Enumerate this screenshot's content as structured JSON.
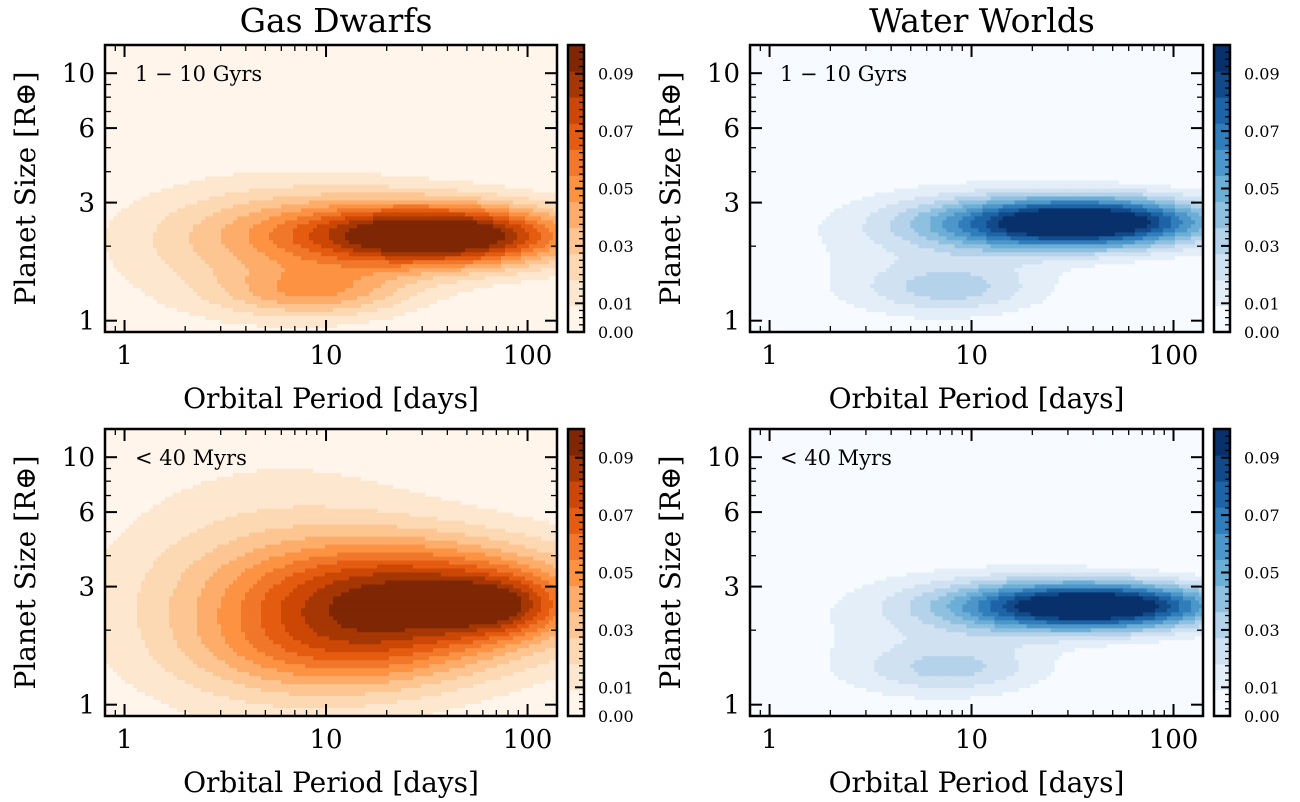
{
  "figure": {
    "column_titles": [
      "Gas Dwarfs",
      "Water Worlds"
    ]
  },
  "chart_data": [
    {
      "type": "heatmap",
      "model": "Gas Dwarfs",
      "annotation": "1 − 10 Gyrs",
      "xlabel": "Orbital Period [days]",
      "ylabel": "Planet Size [R⊕]",
      "x_scale": "log",
      "y_scale": "log",
      "xlim": [
        0.8,
        140
      ],
      "ylim": [
        0.9,
        13
      ],
      "xticks": [
        1,
        10,
        100
      ],
      "xtick_labels": [
        "1",
        "10",
        "100"
      ],
      "yticks": [
        1,
        3,
        6,
        10
      ],
      "ytick_labels": [
        "1",
        "3",
        "6",
        "10"
      ],
      "colormap": "Oranges",
      "colormap_colors": [
        "#fff5eb",
        "#fdd2a5",
        "#fd9243",
        "#df4f05",
        "#7f2704"
      ],
      "colorbar_ticks": [
        0.0,
        0.01,
        0.03,
        0.05,
        0.07,
        0.09
      ],
      "colorbar_tick_labels": [
        "0.00",
        "0.01",
        "0.03",
        "0.05",
        "0.07",
        "0.09"
      ],
      "colorbar_range": [
        0.0,
        0.1
      ],
      "density_peaks": [
        {
          "period": 40,
          "radius": 2.2,
          "period_spread": 0.45,
          "radius_spread": 0.085,
          "weight": 0.098
        },
        {
          "period": 12,
          "radius": 2.3,
          "period_spread": 0.55,
          "radius_spread": 0.13,
          "weight": 0.03
        },
        {
          "period": 9,
          "radius": 1.3,
          "period_spread": 0.32,
          "radius_spread": 0.07,
          "weight": 0.034
        },
        {
          "period": 4,
          "radius": 1.9,
          "period_spread": 0.5,
          "radius_spread": 0.2,
          "weight": 0.017
        }
      ]
    },
    {
      "type": "heatmap",
      "model": "Water Worlds",
      "annotation": "1 − 10 Gyrs",
      "xlabel": "Orbital Period [days]",
      "ylabel": "Planet Size [R⊕]",
      "x_scale": "log",
      "y_scale": "log",
      "xlim": [
        0.8,
        140
      ],
      "ylim": [
        0.9,
        13
      ],
      "xticks": [
        1,
        10,
        100
      ],
      "xtick_labels": [
        "1",
        "10",
        "100"
      ],
      "yticks": [
        1,
        3,
        6,
        10
      ],
      "ytick_labels": [
        "1",
        "3",
        "6",
        "10"
      ],
      "colormap": "Blues",
      "colormap_colors": [
        "#f7fbff",
        "#c6dbef",
        "#6baed6",
        "#2171b5",
        "#08306b"
      ],
      "colorbar_ticks": [
        0.0,
        0.01,
        0.03,
        0.05,
        0.07,
        0.09
      ],
      "colorbar_tick_labels": [
        "0.00",
        "0.01",
        "0.03",
        "0.05",
        "0.07",
        "0.09"
      ],
      "colorbar_range": [
        0.0,
        0.1
      ],
      "density_peaks": [
        {
          "period": 45,
          "radius": 2.5,
          "period_spread": 0.4,
          "radius_spread": 0.07,
          "weight": 0.095
        },
        {
          "period": 15,
          "radius": 2.45,
          "period_spread": 0.4,
          "radius_spread": 0.08,
          "weight": 0.045
        },
        {
          "period": 8,
          "radius": 1.35,
          "period_spread": 0.3,
          "radius_spread": 0.07,
          "weight": 0.026
        },
        {
          "period": 5,
          "radius": 1.9,
          "period_spread": 0.5,
          "radius_spread": 0.2,
          "weight": 0.01
        }
      ]
    },
    {
      "type": "heatmap",
      "model": "Gas Dwarfs",
      "annotation": "< 40 Myrs",
      "xlabel": "Orbital Period [days]",
      "ylabel": "Planet Size [R⊕]",
      "x_scale": "log",
      "y_scale": "log",
      "xlim": [
        0.8,
        140
      ],
      "ylim": [
        0.9,
        13
      ],
      "xticks": [
        1,
        10,
        100
      ],
      "xtick_labels": [
        "1",
        "10",
        "100"
      ],
      "yticks": [
        1,
        3,
        6,
        10
      ],
      "ytick_labels": [
        "1",
        "3",
        "6",
        "10"
      ],
      "colormap": "Oranges",
      "colormap_colors": [
        "#fff5eb",
        "#fdd2a5",
        "#fd9243",
        "#df4f05",
        "#7f2704"
      ],
      "colorbar_ticks": [
        0.0,
        0.01,
        0.03,
        0.05,
        0.07,
        0.09
      ],
      "colorbar_tick_labels": [
        "0.00",
        "0.01",
        "0.03",
        "0.05",
        "0.07",
        "0.09"
      ],
      "colorbar_range": [
        0.0,
        0.1
      ],
      "density_peaks": [
        {
          "period": 30,
          "radius": 2.7,
          "period_spread": 0.6,
          "radius_spread": 0.16,
          "weight": 0.08
        },
        {
          "period": 70,
          "radius": 2.5,
          "period_spread": 0.22,
          "radius_spread": 0.08,
          "weight": 0.035
        },
        {
          "period": 12,
          "radius": 1.6,
          "period_spread": 0.5,
          "radius_spread": 0.13,
          "weight": 0.03
        },
        {
          "period": 6,
          "radius": 2.8,
          "period_spread": 0.6,
          "radius_spread": 0.35,
          "weight": 0.025
        }
      ]
    },
    {
      "type": "heatmap",
      "model": "Water Worlds",
      "annotation": "< 40 Myrs",
      "xlabel": "Orbital Period [days]",
      "ylabel": "Planet Size [R⊕]",
      "x_scale": "log",
      "y_scale": "log",
      "xlim": [
        0.8,
        140
      ],
      "ylim": [
        0.9,
        13
      ],
      "xticks": [
        1,
        10,
        100
      ],
      "xtick_labels": [
        "1",
        "10",
        "100"
      ],
      "yticks": [
        1,
        3,
        6,
        10
      ],
      "ytick_labels": [
        "1",
        "3",
        "6",
        "10"
      ],
      "colormap": "Blues",
      "colormap_colors": [
        "#f7fbff",
        "#c6dbef",
        "#6baed6",
        "#2171b5",
        "#08306b"
      ],
      "colorbar_ticks": [
        0.0,
        0.01,
        0.03,
        0.05,
        0.07,
        0.09
      ],
      "colorbar_tick_labels": [
        "0.00",
        "0.01",
        "0.03",
        "0.05",
        "0.07",
        "0.09"
      ],
      "colorbar_range": [
        0.0,
        0.1
      ],
      "density_peaks": [
        {
          "period": 50,
          "radius": 2.5,
          "period_spread": 0.4,
          "radius_spread": 0.065,
          "weight": 0.095
        },
        {
          "period": 18,
          "radius": 2.5,
          "period_spread": 0.4,
          "radius_spread": 0.08,
          "weight": 0.04
        },
        {
          "period": 8,
          "radius": 1.4,
          "period_spread": 0.3,
          "radius_spread": 0.07,
          "weight": 0.024
        },
        {
          "period": 5,
          "radius": 1.9,
          "period_spread": 0.5,
          "radius_spread": 0.2,
          "weight": 0.01
        }
      ]
    }
  ]
}
